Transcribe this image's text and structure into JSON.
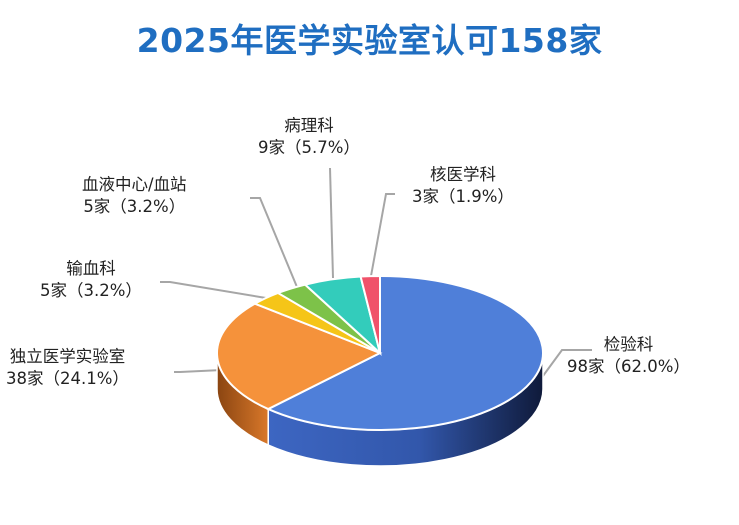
{
  "title": "2025年医学实验室认可158家",
  "chart_data": {
    "type": "pie",
    "title": "2025年医学实验室认可158家",
    "slices": [
      {
        "name": "检验科",
        "value": 98,
        "value_label": "98家（62.0%）",
        "color": "#4f7fd9"
      },
      {
        "name": "独立医学实验室",
        "value": 38,
        "value_label": "38家（24.1%）",
        "color": "#f5923b"
      },
      {
        "name": "输血科",
        "value": 5,
        "value_label": "5家（3.2%）",
        "color": "#f5c518"
      },
      {
        "name": "血液中心/血站",
        "value": 5,
        "value_label": "5家（3.2%）",
        "color": "#7dc249"
      },
      {
        "name": "病理科",
        "value": 9,
        "value_label": "9家（5.7%）",
        "color": "#33ccbb"
      },
      {
        "name": "核医学科",
        "value": 3,
        "value_label": "3家（1.9%）",
        "color": "#f0526a"
      }
    ]
  }
}
